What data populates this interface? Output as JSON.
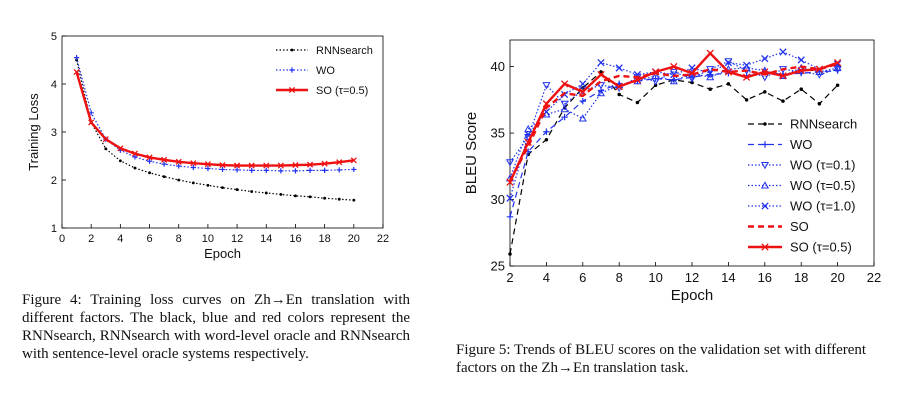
{
  "chart_data": [
    {
      "type": "line",
      "title": "",
      "xlabel": "Epoch",
      "ylabel": "Training Loss",
      "xlim": [
        0,
        22
      ],
      "ylim": [
        1,
        5
      ],
      "xticks": [
        "0",
        "2",
        "4",
        "6",
        "8",
        "10",
        "12",
        "14",
        "16",
        "18",
        "20",
        "22"
      ],
      "yticks": [
        "1",
        "2",
        "3",
        "4",
        "5"
      ],
      "legend_position": "top-right",
      "series": [
        {
          "name": "RNNsearch",
          "color": "#000000",
          "style": "dotted",
          "marker": "dot",
          "x": [
            1,
            2,
            3,
            4,
            5,
            6,
            7,
            8,
            9,
            10,
            11,
            12,
            13,
            14,
            15,
            16,
            17,
            18,
            19,
            20
          ],
          "values": [
            4.5,
            3.2,
            2.65,
            2.4,
            2.25,
            2.15,
            2.07,
            2.0,
            1.94,
            1.89,
            1.84,
            1.8,
            1.76,
            1.73,
            1.7,
            1.67,
            1.65,
            1.62,
            1.6,
            1.58
          ]
        },
        {
          "name": "WO",
          "color": "#2233ee",
          "style": "dotted",
          "marker": "plus",
          "x": [
            1,
            2,
            3,
            4,
            5,
            6,
            7,
            8,
            9,
            10,
            11,
            12,
            13,
            14,
            15,
            16,
            17,
            18,
            19,
            20
          ],
          "values": [
            4.55,
            3.4,
            2.85,
            2.62,
            2.48,
            2.39,
            2.33,
            2.29,
            2.26,
            2.24,
            2.22,
            2.21,
            2.2,
            2.2,
            2.19,
            2.19,
            2.2,
            2.2,
            2.21,
            2.22
          ]
        },
        {
          "name": "SO (τ=0.5)",
          "color": "#ee1111",
          "style": "solid",
          "marker": "x",
          "x": [
            1,
            2,
            3,
            4,
            5,
            6,
            7,
            8,
            9,
            10,
            11,
            12,
            13,
            14,
            15,
            16,
            17,
            18,
            19,
            20
          ],
          "values": [
            4.25,
            3.2,
            2.85,
            2.66,
            2.55,
            2.47,
            2.42,
            2.38,
            2.35,
            2.33,
            2.31,
            2.3,
            2.3,
            2.3,
            2.3,
            2.31,
            2.32,
            2.34,
            2.37,
            2.41
          ]
        }
      ]
    },
    {
      "type": "line",
      "title": "",
      "xlabel": "Epoch",
      "ylabel": "BLEU Score",
      "xlim": [
        2,
        22
      ],
      "ylim": [
        25,
        42
      ],
      "xticks": [
        "2",
        "4",
        "6",
        "8",
        "10",
        "12",
        "14",
        "16",
        "18",
        "20",
        "22"
      ],
      "yticks": [
        "25",
        "30",
        "35",
        "40"
      ],
      "legend_position": "right",
      "series": [
        {
          "name": "RNNsearch",
          "color": "#000000",
          "style": "dashed",
          "marker": "dot",
          "x": [
            2,
            3,
            4,
            5,
            6,
            7,
            8,
            9,
            10,
            11,
            12,
            13,
            14,
            15,
            16,
            17,
            18,
            19,
            20
          ],
          "values": [
            25.9,
            33.4,
            34.5,
            36.9,
            38.4,
            39.6,
            37.9,
            37.3,
            38.6,
            39.0,
            38.8,
            38.3,
            38.7,
            37.5,
            38.1,
            37.4,
            38.3,
            37.2,
            38.6
          ]
        },
        {
          "name": "WO",
          "color": "#2233ee",
          "style": "dashed",
          "marker": "plus",
          "x": [
            2,
            3,
            4,
            5,
            6,
            7,
            8,
            9,
            10,
            11,
            12,
            13,
            14,
            15,
            16,
            17,
            18,
            19,
            20
          ],
          "values": [
            28.7,
            33.6,
            35.1,
            36.2,
            37.4,
            38.2,
            38.7,
            38.9,
            39.1,
            39.0,
            39.2,
            39.4,
            39.5,
            39.3,
            39.6,
            39.4,
            39.5,
            39.6,
            39.7
          ]
        },
        {
          "name": "WO (τ=0.1)",
          "color": "#2233ee",
          "style": "dotted",
          "marker": "triangle-down",
          "x": [
            2,
            3,
            4,
            5,
            6,
            7,
            8,
            9,
            10,
            11,
            12,
            13,
            14,
            15,
            16,
            17,
            18,
            19,
            20
          ],
          "values": [
            32.8,
            34.7,
            38.6,
            37.2,
            38.2,
            38.6,
            38.4,
            39.2,
            38.9,
            39.6,
            39.1,
            39.8,
            40.4,
            39.7,
            39.2,
            39.8,
            39.6,
            39.4,
            39.8
          ]
        },
        {
          "name": "WO (τ=0.5)",
          "color": "#2233ee",
          "style": "dotted",
          "marker": "triangle-up",
          "x": [
            2,
            3,
            4,
            5,
            6,
            7,
            8,
            9,
            10,
            11,
            12,
            13,
            14,
            15,
            16,
            17,
            18,
            19,
            20
          ],
          "values": [
            31.6,
            35.3,
            36.4,
            36.8,
            36.1,
            38.0,
            38.6,
            38.9,
            39.3,
            38.9,
            39.5,
            39.2,
            39.8,
            39.9,
            39.7,
            39.3,
            39.9,
            39.6,
            39.9
          ]
        },
        {
          "name": "WO (τ=1.0)",
          "color": "#2233ee",
          "style": "dotted",
          "marker": "x",
          "x": [
            2,
            3,
            4,
            5,
            6,
            7,
            8,
            9,
            10,
            11,
            12,
            13,
            14,
            15,
            16,
            17,
            18,
            19,
            20
          ],
          "values": [
            30.1,
            34.9,
            36.6,
            37.9,
            38.7,
            40.3,
            39.9,
            39.4,
            39.6,
            39.4,
            39.9,
            39.5,
            40.3,
            40.1,
            40.6,
            41.1,
            40.5,
            39.8,
            40.2
          ]
        },
        {
          "name": "SO",
          "color": "#ee1111",
          "style": "dashed",
          "marker": "none",
          "x": [
            2,
            3,
            4,
            5,
            6,
            7,
            8,
            9,
            10,
            11,
            12,
            13,
            14,
            15,
            16,
            17,
            18,
            19,
            20
          ],
          "values": [
            31.4,
            34.0,
            36.9,
            38.0,
            37.8,
            38.9,
            39.3,
            39.2,
            39.5,
            39.3,
            39.4,
            39.8,
            39.6,
            39.7,
            39.4,
            39.8,
            40.0,
            39.8,
            40.2
          ]
        },
        {
          "name": "SO (τ=0.5)",
          "color": "#ee1111",
          "style": "solid",
          "marker": "x",
          "x": [
            2,
            3,
            4,
            5,
            6,
            7,
            8,
            9,
            10,
            11,
            12,
            13,
            14,
            15,
            16,
            17,
            18,
            19,
            20
          ],
          "values": [
            31.3,
            34.3,
            37.2,
            38.7,
            38.1,
            39.4,
            38.5,
            39.0,
            39.6,
            40.0,
            39.5,
            41.0,
            39.6,
            39.2,
            39.6,
            39.3,
            39.7,
            39.8,
            40.3
          ]
        }
      ]
    }
  ],
  "captions": {
    "fig4": "Figure 4: Training loss curves on Zh→En translation with different factors. The black, blue and red colors represent the RNNsearch, RNNsearch with word-level oracle and RNNsearch with sentence-level oracle systems respectively.",
    "fig5": "Figure 5: Trends of BLEU scores on the validation set with different factors on the Zh→En translation task."
  }
}
